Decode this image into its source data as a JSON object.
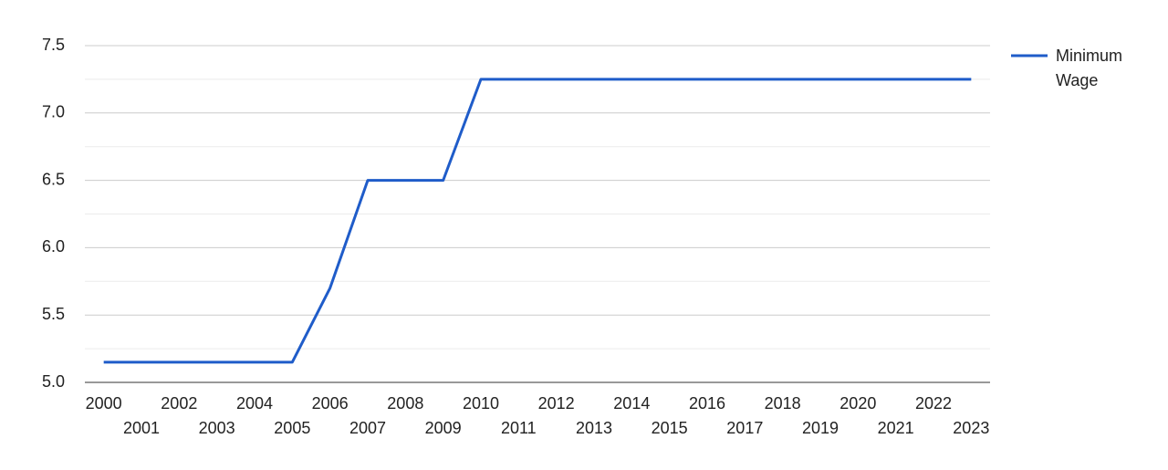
{
  "chart_data": {
    "type": "line",
    "categories": [
      "2000",
      "2001",
      "2002",
      "2003",
      "2004",
      "2005",
      "2006",
      "2007",
      "2008",
      "2009",
      "2010",
      "2011",
      "2012",
      "2013",
      "2014",
      "2015",
      "2016",
      "2017",
      "2018",
      "2019",
      "2020",
      "2021",
      "2022",
      "2023"
    ],
    "series": [
      {
        "name": "Minimum Wage",
        "color": "#1f5cc9",
        "values": [
          5.15,
          5.15,
          5.15,
          5.15,
          5.15,
          5.15,
          5.7,
          6.5,
          6.5,
          6.5,
          7.25,
          7.25,
          7.25,
          7.25,
          7.25,
          7.25,
          7.25,
          7.25,
          7.25,
          7.25,
          7.25,
          7.25,
          7.25,
          7.25
        ]
      }
    ],
    "ylim": [
      5.0,
      7.5
    ],
    "yticks": [
      {
        "value": 5.0,
        "label": "5.0"
      },
      5.5,
      {
        "value": 6.0,
        "label": "6.0"
      },
      6.5,
      {
        "value": 7.0,
        "label": "7.0"
      },
      7.5
    ],
    "grid": true,
    "legend": "right"
  }
}
